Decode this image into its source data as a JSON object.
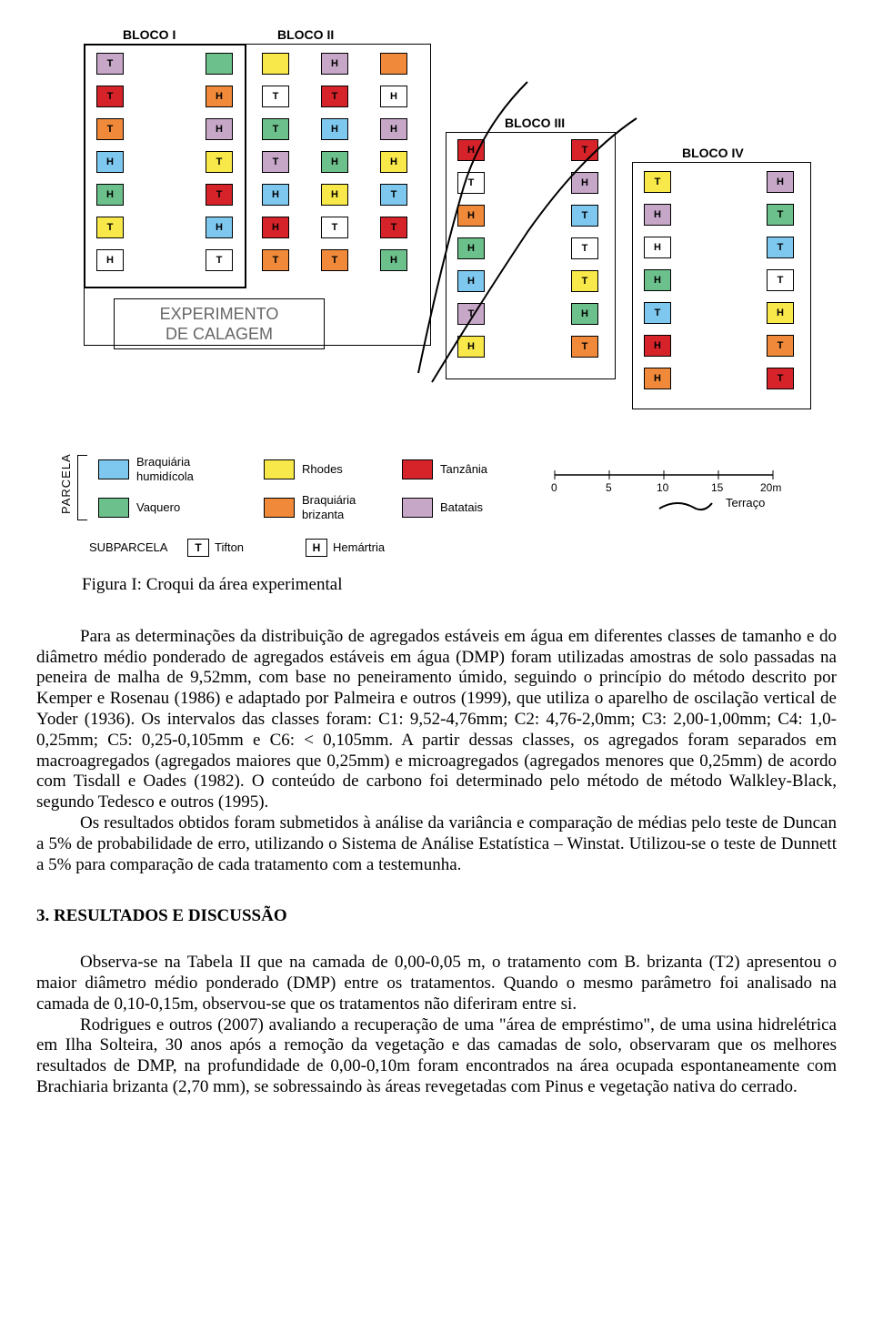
{
  "colors": {
    "humidicola": "#7ec8f0",
    "vaquero": "#6cc08b",
    "rhodes": "#f9e84a",
    "brizanta": "#f08a3a",
    "tanzania": "#d6232a",
    "batatais": "#c6a7c8",
    "white": "#ffffff"
  },
  "bloco_labels": {
    "b1": "BLOCO I",
    "b2": "BLOCO II",
    "b3": "BLOCO III",
    "b4": "BLOCO IV"
  },
  "experimento": {
    "line1": "EXPERIMENTO",
    "line2": "DE CALAGEM"
  },
  "bloco1": {
    "col1": [
      {
        "c": "batatais",
        "l": "T"
      },
      {
        "c": "tanzania",
        "l": "T"
      },
      {
        "c": "brizanta",
        "l": "T"
      },
      {
        "c": "humidicola",
        "l": "H"
      },
      {
        "c": "vaquero",
        "l": "H"
      },
      {
        "c": "rhodes",
        "l": "T"
      },
      {
        "c": "white",
        "l": "H"
      }
    ],
    "col2": [
      {
        "c": "vaquero",
        "l": ""
      },
      {
        "c": "brizanta",
        "l": "H"
      },
      {
        "c": "batatais",
        "l": "H"
      },
      {
        "c": "rhodes",
        "l": "T"
      },
      {
        "c": "tanzania",
        "l": "T"
      },
      {
        "c": "humidicola",
        "l": "H"
      },
      {
        "c": "white",
        "l": "T"
      }
    ]
  },
  "bloco2": {
    "col1": [
      {
        "c": "rhodes",
        "l": ""
      },
      {
        "c": "white",
        "l": "T"
      },
      {
        "c": "vaquero",
        "l": "T"
      },
      {
        "c": "batatais",
        "l": "T"
      },
      {
        "c": "humidicola",
        "l": "H"
      },
      {
        "c": "tanzania",
        "l": "H"
      },
      {
        "c": "brizanta",
        "l": "T"
      }
    ],
    "col2": [
      {
        "c": "batatais",
        "l": "H"
      },
      {
        "c": "tanzania",
        "l": "T"
      },
      {
        "c": "humidicola",
        "l": "H"
      },
      {
        "c": "vaquero",
        "l": "H"
      },
      {
        "c": "rhodes",
        "l": "H"
      },
      {
        "c": "white",
        "l": "T"
      },
      {
        "c": "brizanta",
        "l": "T"
      }
    ],
    "col2b": [
      {
        "c": "brizanta",
        "l": ""
      },
      {
        "c": "white",
        "l": "H"
      },
      {
        "c": "batatais",
        "l": "H"
      },
      {
        "c": "rhodes",
        "l": "H"
      },
      {
        "c": "humidicola",
        "l": "T"
      },
      {
        "c": "tanzania",
        "l": "T"
      },
      {
        "c": "vaquero",
        "l": "H"
      }
    ]
  },
  "bloco3": {
    "col1": [
      {
        "c": "tanzania",
        "l": "H"
      },
      {
        "c": "white",
        "l": "T"
      },
      {
        "c": "brizanta",
        "l": "H"
      },
      {
        "c": "vaquero",
        "l": "H"
      },
      {
        "c": "humidicola",
        "l": "H"
      },
      {
        "c": "batatais",
        "l": "T"
      },
      {
        "c": "rhodes",
        "l": "H"
      }
    ],
    "col2": [
      {
        "c": "tanzania",
        "l": "T"
      },
      {
        "c": "batatais",
        "l": "H"
      },
      {
        "c": "humidicola",
        "l": "T"
      },
      {
        "c": "white",
        "l": "T"
      },
      {
        "c": "rhodes",
        "l": "T"
      },
      {
        "c": "vaquero",
        "l": "H"
      },
      {
        "c": "brizanta",
        "l": "T"
      }
    ]
  },
  "bloco4": {
    "col1": [
      {
        "c": "rhodes",
        "l": "T"
      },
      {
        "c": "batatais",
        "l": "H"
      },
      {
        "c": "white",
        "l": "H"
      },
      {
        "c": "vaquero",
        "l": "H"
      },
      {
        "c": "humidicola",
        "l": "T"
      },
      {
        "c": "tanzania",
        "l": "H"
      },
      {
        "c": "brizanta",
        "l": "H"
      }
    ],
    "col2": [
      {
        "c": "batatais",
        "l": "H"
      },
      {
        "c": "vaquero",
        "l": "T"
      },
      {
        "c": "humidicola",
        "l": "T"
      },
      {
        "c": "white",
        "l": "T"
      },
      {
        "c": "rhodes",
        "l": "H"
      },
      {
        "c": "brizanta",
        "l": "T"
      },
      {
        "c": "tanzania",
        "l": "T"
      }
    ]
  },
  "legend": {
    "parcela": "PARCELA",
    "items": [
      {
        "c": "humidicola",
        "t": "Braquiária humidícola"
      },
      {
        "c": "vaquero",
        "t": "Vaquero"
      },
      {
        "c": "rhodes",
        "t": "Rhodes"
      },
      {
        "c": "brizanta",
        "t": "Braquiária brizanta"
      },
      {
        "c": "tanzania",
        "t": "Tanzânia"
      },
      {
        "c": "batatais",
        "t": "Batatais"
      }
    ],
    "subparcela": "SUBPARCELA",
    "tifton_sym": "T",
    "tifton": "Tifton",
    "hem_sym": "H",
    "hemartria": "Hemártria",
    "scale_ticks": [
      "0",
      "5",
      "10",
      "15",
      "20m"
    ],
    "terraco": "Terraço"
  },
  "caption": "Figura I: Croqui da área experimental",
  "para1": "Para as determinações da distribuição de agregados estáveis em água em diferentes classes de tamanho e do diâmetro médio ponderado de agregados estáveis em água (DMP) foram utilizadas amostras de solo passadas na peneira de malha de 9,52mm, com base no peneiramento úmido, seguindo o princípio do método descrito por Kemper e Rosenau (1986) e adaptado por Palmeira e outros (1999), que utiliza o aparelho de oscilação vertical de Yoder (1936). Os intervalos das classes foram: C1: 9,52-4,76mm; C2: 4,76-2,0mm; C3: 2,00-1,00mm; C4: 1,0-0,25mm; C5: 0,25-0,105mm e C6: < 0,105mm. A partir dessas classes, os agregados foram separados em macroagregados (agregados maiores que 0,25mm) e microagregados (agregados menores que 0,25mm) de acordo com Tisdall e Oades (1982). O conteúdo de carbono foi determinado pelo método de método Walkley-Black, segundo Tedesco e outros (1995).",
  "para2": "Os resultados obtidos foram submetidos à análise da variância e comparação de médias pelo teste de Duncan a 5% de probabilidade de erro, utilizando o Sistema de Análise Estatística – Winstat. Utilizou-se o teste de Dunnett a 5% para comparação de cada tratamento com a testemunha.",
  "section": "3. RESULTADOS E DISCUSSÃO",
  "para3": "Observa-se na Tabela II que na camada de 0,00-0,05 m, o tratamento com B. brizanta (T2) apresentou o maior diâmetro médio ponderado (DMP) entre os tratamentos. Quando o mesmo parâmetro foi analisado na camada de 0,10-0,15m, observou-se que os tratamentos não diferiram entre si.",
  "para4": "Rodrigues e outros (2007) avaliando a recuperação de uma \"área de empréstimo\", de uma usina hidrelétrica em Ilha Solteira, 30 anos após a remoção da vegetação e das camadas de solo, observaram que os melhores resultados de DMP, na profundidade de 0,00-0,10m foram encontrados na área ocupada espontaneamente com Brachiaria brizanta (2,70 mm), se sobressaindo às áreas revegetadas com Pinus e vegetação nativa do cerrado."
}
